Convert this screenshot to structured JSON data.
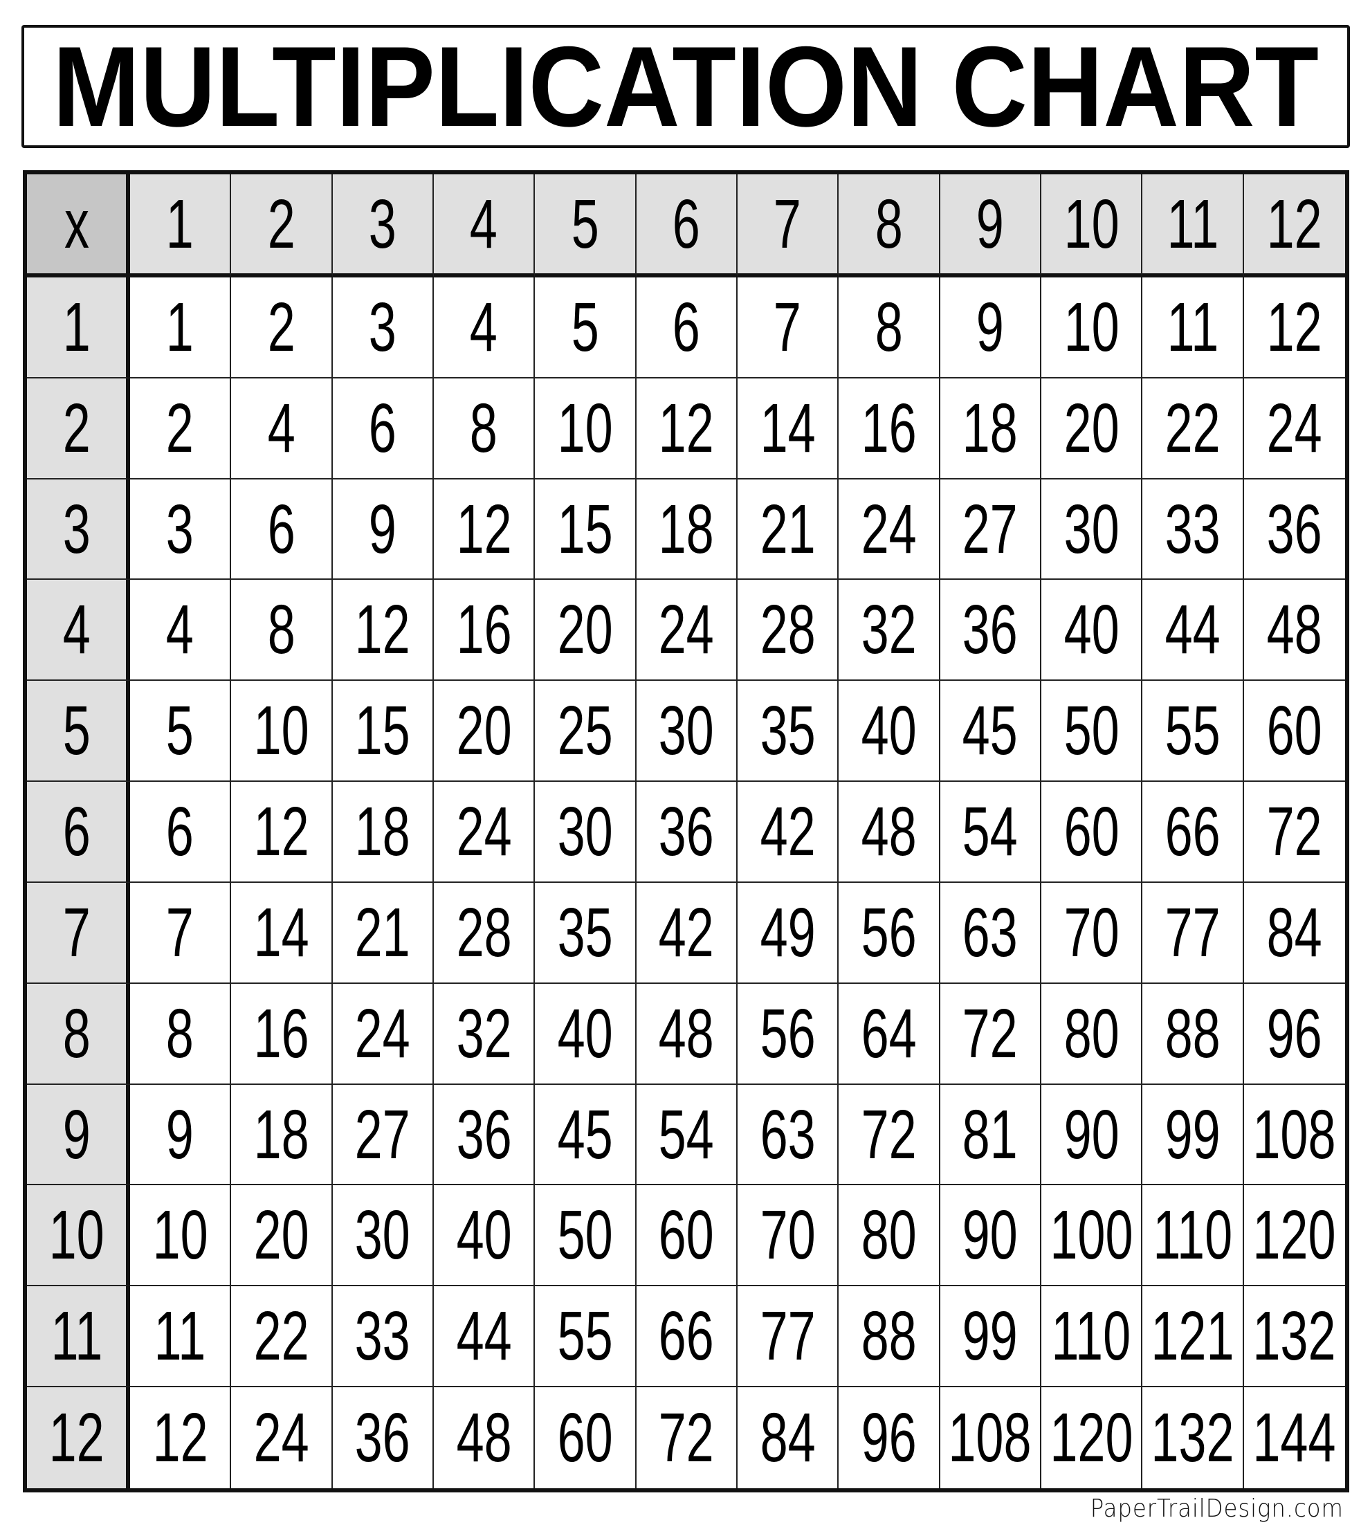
{
  "title": "MULTIPLICATION CHART",
  "corner_label": "x",
  "column_headers": [
    "1",
    "2",
    "3",
    "4",
    "5",
    "6",
    "7",
    "8",
    "9",
    "10",
    "11",
    "12"
  ],
  "row_headers": [
    "1",
    "2",
    "3",
    "4",
    "5",
    "6",
    "7",
    "8",
    "9",
    "10",
    "11",
    "12"
  ],
  "rows": [
    [
      "1",
      "2",
      "3",
      "4",
      "5",
      "6",
      "7",
      "8",
      "9",
      "10",
      "11",
      "12"
    ],
    [
      "2",
      "4",
      "6",
      "8",
      "10",
      "12",
      "14",
      "16",
      "18",
      "20",
      "22",
      "24"
    ],
    [
      "3",
      "6",
      "9",
      "12",
      "15",
      "18",
      "21",
      "24",
      "27",
      "30",
      "33",
      "36"
    ],
    [
      "4",
      "8",
      "12",
      "16",
      "20",
      "24",
      "28",
      "32",
      "36",
      "40",
      "44",
      "48"
    ],
    [
      "5",
      "10",
      "15",
      "20",
      "25",
      "30",
      "35",
      "40",
      "45",
      "50",
      "55",
      "60"
    ],
    [
      "6",
      "12",
      "18",
      "24",
      "30",
      "36",
      "42",
      "48",
      "54",
      "60",
      "66",
      "72"
    ],
    [
      "7",
      "14",
      "21",
      "28",
      "35",
      "42",
      "49",
      "56",
      "63",
      "70",
      "77",
      "84"
    ],
    [
      "8",
      "16",
      "24",
      "32",
      "40",
      "48",
      "56",
      "64",
      "72",
      "80",
      "88",
      "96"
    ],
    [
      "9",
      "18",
      "27",
      "36",
      "45",
      "54",
      "63",
      "72",
      "81",
      "90",
      "99",
      "108"
    ],
    [
      "10",
      "20",
      "30",
      "40",
      "50",
      "60",
      "70",
      "80",
      "90",
      "100",
      "110",
      "120"
    ],
    [
      "11",
      "22",
      "33",
      "44",
      "55",
      "66",
      "77",
      "88",
      "99",
      "110",
      "121",
      "132"
    ],
    [
      "12",
      "24",
      "36",
      "48",
      "60",
      "72",
      "84",
      "96",
      "108",
      "120",
      "132",
      "144"
    ]
  ],
  "colors": {
    "header_fill": "#e0e0e0",
    "corner_fill": "#c6c6c6",
    "border": "#111111"
  },
  "footer": "PaperTrailDesign.com"
}
